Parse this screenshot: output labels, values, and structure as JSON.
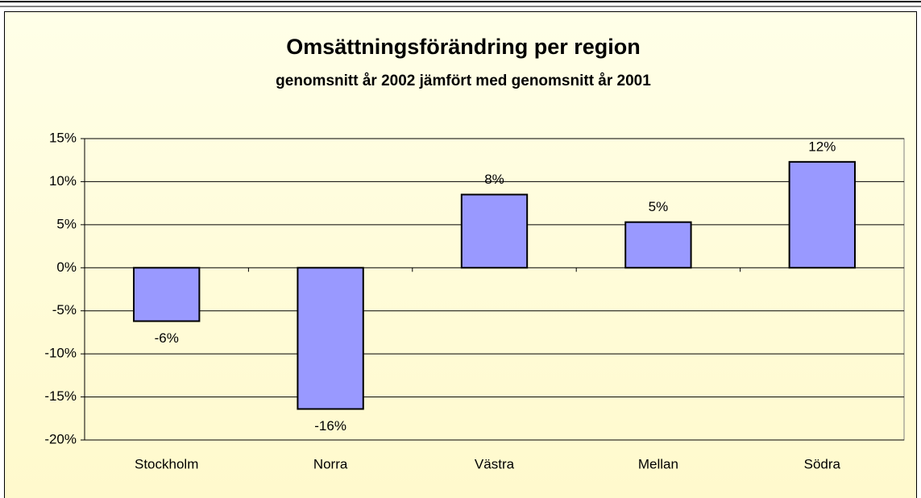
{
  "chart_data": {
    "type": "bar",
    "title": "Omsättningsförändring per region",
    "subtitle": "genomsnitt år 2002 jämfört med genomsnitt år 2001",
    "categories": [
      "Stockholm",
      "Norra",
      "Västra",
      "Mellan",
      "Södra"
    ],
    "values": [
      -6.2,
      -16.4,
      8.5,
      5.3,
      12.3
    ],
    "value_labels": [
      "-6%",
      "-16%",
      "8%",
      "5%",
      "12%"
    ],
    "color": "#9999ff",
    "ylim": [
      -20,
      15
    ],
    "yticks": [
      {
        "value": -20,
        "label": "-20%"
      },
      {
        "value": -15,
        "label": "-15%"
      },
      {
        "value": -10,
        "label": "-10%"
      },
      {
        "value": -5,
        "label": "-5%"
      },
      {
        "value": 0,
        "label": "0%"
      },
      {
        "value": 5,
        "label": "5%"
      },
      {
        "value": 10,
        "label": "10%"
      },
      {
        "value": 15,
        "label": "15%"
      }
    ],
    "grid": true
  }
}
